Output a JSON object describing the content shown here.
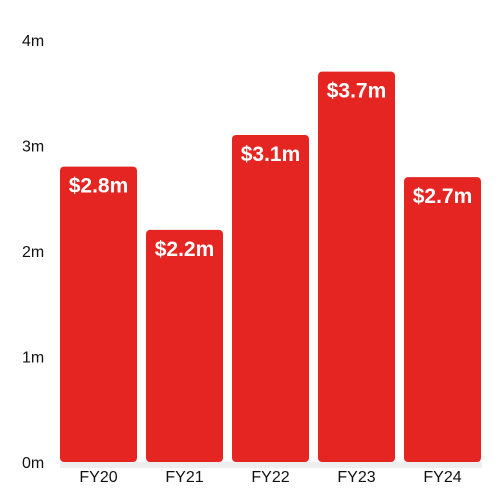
{
  "chart_data": {
    "type": "bar",
    "categories": [
      "FY20",
      "FY21",
      "FY22",
      "FY23",
      "FY24"
    ],
    "values": [
      2.8,
      2.2,
      3.1,
      3.7,
      2.7
    ],
    "data_labels": [
      "$2.8m",
      "$2.2m",
      "$3.1m",
      "$3.7m",
      "$2.7m"
    ],
    "title": "",
    "xlabel": "",
    "ylabel": "",
    "ylim": [
      0,
      4
    ],
    "yticks": [
      {
        "value": 0,
        "label": "0m"
      },
      {
        "value": 1,
        "label": "1m"
      },
      {
        "value": 2,
        "label": "2m"
      },
      {
        "value": 3,
        "label": "3m"
      },
      {
        "value": 4,
        "label": "4m"
      }
    ],
    "grid": false,
    "legend": "none",
    "colors": {
      "bar": "#e52521",
      "baseline": "#eeeeee",
      "data_label": "#ffffff",
      "text": "#111111"
    }
  }
}
